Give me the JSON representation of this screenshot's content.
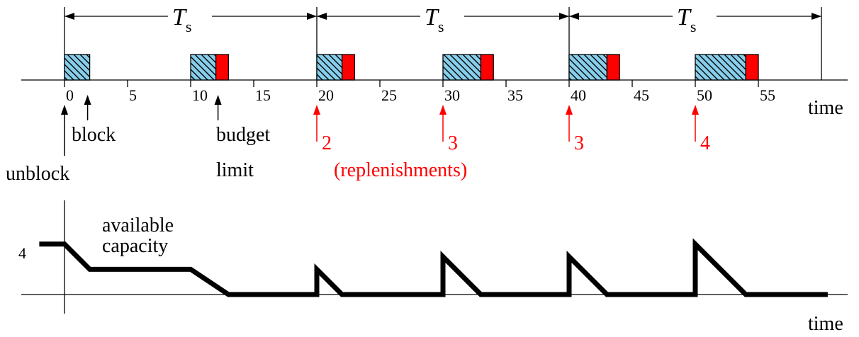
{
  "colors": {
    "exec": "#87ceeb",
    "overrun": "#ff0000",
    "replenishment": "#ff0000",
    "axis": "#000000",
    "capacity_line": "#000000"
  },
  "period_label": {
    "main": "T",
    "sub": "s"
  },
  "period_boundaries": [
    0,
    20,
    40,
    60
  ],
  "timeline": {
    "x_label": "time",
    "x_range": [
      -3.5,
      62
    ],
    "ticks": [
      {
        "value": 0,
        "label": "0"
      },
      {
        "value": 5,
        "label": "5"
      },
      {
        "value": 10,
        "label": "10"
      },
      {
        "value": 15,
        "label": "15"
      },
      {
        "value": 20,
        "label": "20"
      },
      {
        "value": 25,
        "label": "25"
      },
      {
        "value": 30,
        "label": "30"
      },
      {
        "value": 35,
        "label": "35"
      },
      {
        "value": 40,
        "label": "40"
      },
      {
        "value": 45,
        "label": "45"
      },
      {
        "value": 50,
        "label": "50"
      },
      {
        "value": 55,
        "label": "55"
      }
    ],
    "executions": [
      {
        "start": 0,
        "end": 2,
        "overrun_end": 2
      },
      {
        "start": 10,
        "end": 12,
        "overrun_end": 13
      },
      {
        "start": 20,
        "end": 22,
        "overrun_end": 23
      },
      {
        "start": 30,
        "end": 33,
        "overrun_end": 34
      },
      {
        "start": 40,
        "end": 43,
        "overrun_end": 44
      },
      {
        "start": 50,
        "end": 54,
        "overrun_end": 55
      }
    ],
    "events": [
      {
        "time": 0,
        "label": "unblock"
      },
      {
        "time": 2,
        "label": "block"
      },
      {
        "time": 12,
        "label": "budget",
        "label2": "limit"
      }
    ],
    "replenishments": [
      {
        "time": 20,
        "amount": "2"
      },
      {
        "time": 30,
        "amount": "3"
      },
      {
        "time": 40,
        "amount": "3"
      },
      {
        "time": 50,
        "amount": "4"
      }
    ],
    "replenishments_caption": "(replenishments)"
  },
  "capacity": {
    "y_label": "4",
    "y_label_value": 4,
    "label_line1": "available",
    "label_line2": "capacity",
    "x_label": "time",
    "points": [
      [
        -2,
        4
      ],
      [
        0,
        4
      ],
      [
        2,
        2
      ],
      [
        10,
        2
      ],
      [
        13,
        0
      ],
      [
        20,
        0
      ],
      [
        20,
        2
      ],
      [
        22,
        0
      ],
      [
        30,
        0
      ],
      [
        30,
        3
      ],
      [
        33,
        0
      ],
      [
        40,
        0
      ],
      [
        40,
        3
      ],
      [
        43,
        0
      ],
      [
        50,
        0
      ],
      [
        50,
        4
      ],
      [
        54,
        0
      ],
      [
        60.5,
        0
      ]
    ]
  }
}
